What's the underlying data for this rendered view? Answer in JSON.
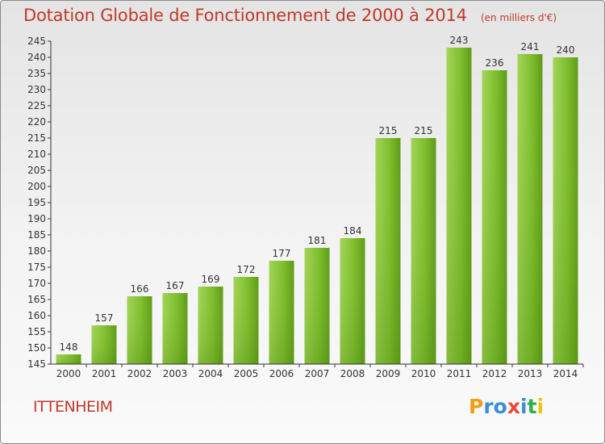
{
  "chart_data": {
    "type": "bar",
    "title": "Dotation Globale de Fonctionnement de 2000 à 2014",
    "subtitle": "(en milliers d'€)",
    "categories": [
      "2000",
      "2001",
      "2002",
      "2003",
      "2004",
      "2005",
      "2006",
      "2007",
      "2008",
      "2009",
      "2010",
      "2011",
      "2012",
      "2013",
      "2014"
    ],
    "values": [
      148,
      157,
      166,
      167,
      169,
      172,
      177,
      181,
      184,
      215,
      215,
      243,
      236,
      241,
      240
    ],
    "ylim": [
      145,
      245
    ],
    "ytick_step": 5,
    "xlabel": "",
    "ylabel": "",
    "grid": false,
    "bar_color": "#7fbf2e",
    "bar_color_light": "#a4d45a",
    "bar_color_dark": "#5f9b17"
  },
  "commune": "ITTENHEIM",
  "brand": {
    "letters": [
      "P",
      "r",
      "o",
      "x",
      "i",
      "t",
      "i"
    ],
    "colors": [
      "#f39c12",
      "#3a8fd8",
      "#3a8fd8",
      "#e74c3c",
      "#3a8fd8",
      "#2fae4e",
      "#f1c40f"
    ]
  },
  "colors": {
    "title": "#c0392b",
    "axis": "#333333",
    "text": "#333333"
  }
}
